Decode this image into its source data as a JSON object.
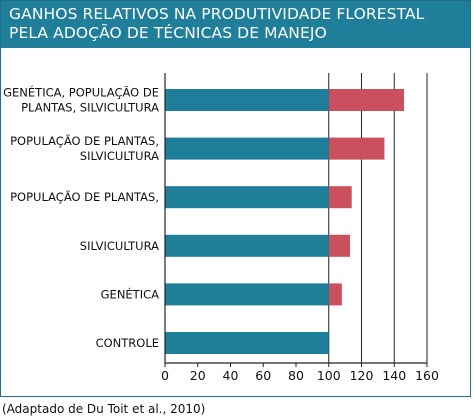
{
  "header": {
    "title_lines": [
      "GANHOS RELATIVOS NA PRODUTIVIDADE FLORESTAL",
      "PELA ADOÇÃO DE TÉCNICAS DE MANEJO"
    ]
  },
  "source": "(Adaptado de Du Toit et al., 2010)",
  "colors": {
    "title_bg": "#1f7e99",
    "base_bar": "#1f7e99",
    "gain_bar": "#c9505c",
    "frame": "#1f6f86"
  },
  "chart_data": {
    "type": "bar",
    "orientation": "horizontal",
    "stacked": true,
    "categories": [
      [
        "GENÉTICA, POPULAÇÃO DE",
        "PLANTAS, SILVICULTURA"
      ],
      [
        "POPULAÇÃO DE PLANTAS,",
        "SILVICULTURA"
      ],
      [
        "POPULAÇÃO DE PLANTAS,"
      ],
      [
        "SILVICULTURA"
      ],
      [
        "GENÉTICA"
      ],
      [
        "CONTROLE"
      ]
    ],
    "series": [
      {
        "values": [
          100,
          100,
          100,
          100,
          100,
          100
        ]
      },
      {
        "values": [
          46,
          34,
          14,
          13,
          8,
          0
        ]
      }
    ],
    "xlim": [
      0,
      160
    ],
    "xticks": [
      "0",
      "20",
      "40",
      "60",
      "80",
      "100",
      "120",
      "140",
      "160"
    ],
    "xtick_values": [
      0,
      20,
      40,
      60,
      80,
      100,
      120,
      140,
      160
    ],
    "grid": "vertical lines at 100, 120, 140, 160"
  }
}
